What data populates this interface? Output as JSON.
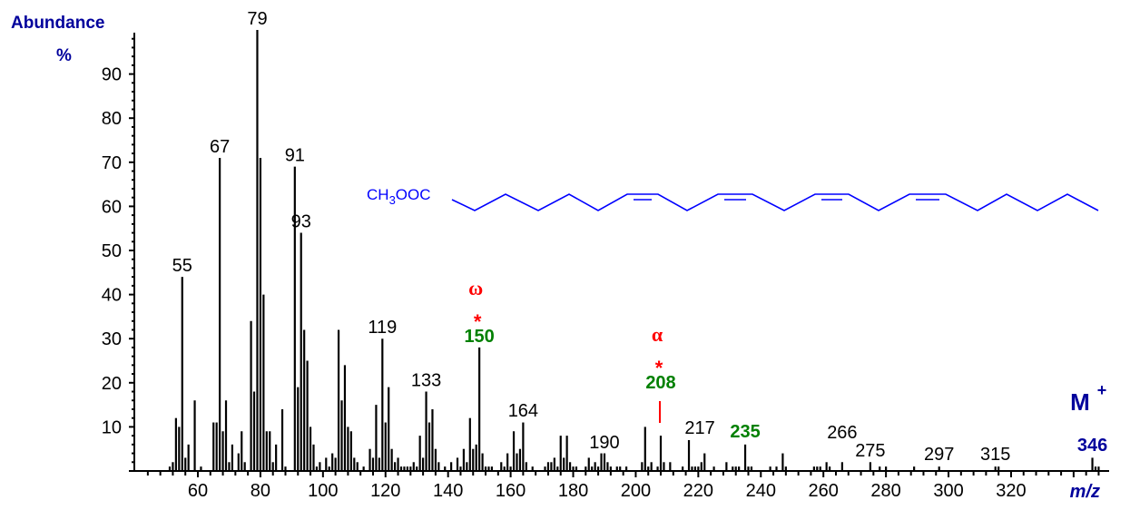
{
  "chart_data": {
    "type": "bar",
    "title": "",
    "xlabel": "m/z",
    "ylabel": "Abundance %",
    "xlim": [
      40,
      350
    ],
    "ylim": [
      0,
      100
    ],
    "xticks": [
      60,
      80,
      100,
      120,
      140,
      160,
      180,
      200,
      220,
      240,
      260,
      280,
      300,
      320
    ],
    "yticks": [
      10,
      20,
      30,
      40,
      50,
      60,
      70,
      80,
      90
    ],
    "grid": false,
    "peaks": [
      [
        51,
        1
      ],
      [
        52,
        2
      ],
      [
        53,
        12
      ],
      [
        54,
        10
      ],
      [
        55,
        44
      ],
      [
        56,
        3
      ],
      [
        57,
        6
      ],
      [
        59,
        16
      ],
      [
        61,
        1
      ],
      [
        65,
        11
      ],
      [
        66,
        11
      ],
      [
        67,
        71
      ],
      [
        68,
        9
      ],
      [
        69,
        16
      ],
      [
        70,
        2
      ],
      [
        71,
        6
      ],
      [
        73,
        4
      ],
      [
        74,
        9
      ],
      [
        75,
        2
      ],
      [
        77,
        34
      ],
      [
        78,
        18
      ],
      [
        79,
        100
      ],
      [
        80,
        71
      ],
      [
        81,
        40
      ],
      [
        82,
        9
      ],
      [
        83,
        9
      ],
      [
        84,
        2
      ],
      [
        85,
        6
      ],
      [
        87,
        14
      ],
      [
        88,
        1
      ],
      [
        91,
        69
      ],
      [
        92,
        19
      ],
      [
        93,
        54
      ],
      [
        94,
        32
      ],
      [
        95,
        25
      ],
      [
        96,
        10
      ],
      [
        97,
        6
      ],
      [
        98,
        1
      ],
      [
        99,
        2
      ],
      [
        101,
        3
      ],
      [
        102,
        1
      ],
      [
        103,
        4
      ],
      [
        104,
        3
      ],
      [
        105,
        32
      ],
      [
        106,
        16
      ],
      [
        107,
        24
      ],
      [
        108,
        10
      ],
      [
        109,
        9
      ],
      [
        110,
        3
      ],
      [
        111,
        2
      ],
      [
        113,
        1
      ],
      [
        115,
        5
      ],
      [
        116,
        3
      ],
      [
        117,
        15
      ],
      [
        118,
        3
      ],
      [
        119,
        30
      ],
      [
        120,
        11
      ],
      [
        121,
        19
      ],
      [
        122,
        5
      ],
      [
        123,
        2
      ],
      [
        124,
        3
      ],
      [
        125,
        1
      ],
      [
        126,
        1
      ],
      [
        127,
        1
      ],
      [
        128,
        1
      ],
      [
        129,
        2
      ],
      [
        130,
        1
      ],
      [
        131,
        8
      ],
      [
        132,
        3
      ],
      [
        133,
        18
      ],
      [
        134,
        11
      ],
      [
        135,
        14
      ],
      [
        136,
        5
      ],
      [
        137,
        2
      ],
      [
        139,
        1
      ],
      [
        141,
        2
      ],
      [
        143,
        3
      ],
      [
        144,
        1
      ],
      [
        145,
        5
      ],
      [
        146,
        2
      ],
      [
        147,
        12
      ],
      [
        148,
        5
      ],
      [
        149,
        6
      ],
      [
        150,
        28
      ],
      [
        151,
        4
      ],
      [
        152,
        1
      ],
      [
        153,
        1
      ],
      [
        154,
        1
      ],
      [
        157,
        2
      ],
      [
        158,
        1
      ],
      [
        159,
        4
      ],
      [
        160,
        1
      ],
      [
        161,
        9
      ],
      [
        162,
        4
      ],
      [
        163,
        5
      ],
      [
        164,
        11
      ],
      [
        165,
        2
      ],
      [
        167,
        1
      ],
      [
        171,
        1
      ],
      [
        172,
        2
      ],
      [
        173,
        2
      ],
      [
        174,
        3
      ],
      [
        175,
        1
      ],
      [
        176,
        8
      ],
      [
        177,
        3
      ],
      [
        178,
        8
      ],
      [
        179,
        2
      ],
      [
        180,
        1
      ],
      [
        181,
        1
      ],
      [
        184,
        1
      ],
      [
        185,
        3
      ],
      [
        186,
        1
      ],
      [
        187,
        2
      ],
      [
        188,
        1
      ],
      [
        189,
        4
      ],
      [
        190,
        4
      ],
      [
        191,
        2
      ],
      [
        192,
        1
      ],
      [
        194,
        1
      ],
      [
        195,
        1
      ],
      [
        197,
        1
      ],
      [
        202,
        2
      ],
      [
        203,
        10
      ],
      [
        204,
        1
      ],
      [
        205,
        2
      ],
      [
        207,
        1
      ],
      [
        208,
        8
      ],
      [
        209,
        2
      ],
      [
        211,
        2
      ],
      [
        215,
        1
      ],
      [
        217,
        7
      ],
      [
        218,
        1
      ],
      [
        219,
        1
      ],
      [
        220,
        1
      ],
      [
        221,
        2
      ],
      [
        222,
        4
      ],
      [
        225,
        1
      ],
      [
        229,
        2
      ],
      [
        231,
        1
      ],
      [
        232,
        1
      ],
      [
        233,
        1
      ],
      [
        235,
        6
      ],
      [
        236,
        1
      ],
      [
        237,
        1
      ],
      [
        243,
        1
      ],
      [
        245,
        1
      ],
      [
        247,
        4
      ],
      [
        248,
        1
      ],
      [
        257,
        1
      ],
      [
        258,
        1
      ],
      [
        259,
        1
      ],
      [
        261,
        2
      ],
      [
        262,
        1
      ],
      [
        266,
        2
      ],
      [
        275,
        2
      ],
      [
        278,
        1
      ],
      [
        280,
        1
      ],
      [
        289,
        1
      ],
      [
        297,
        1
      ],
      [
        315,
        1
      ],
      [
        316,
        1
      ],
      [
        346,
        3
      ],
      [
        347,
        1
      ],
      [
        348,
        1
      ]
    ],
    "annotations": [
      {
        "mz": 55,
        "label": "55",
        "color": "#000000"
      },
      {
        "mz": 67,
        "label": "67",
        "color": "#000000"
      },
      {
        "mz": 79,
        "label": "79",
        "color": "#000000"
      },
      {
        "mz": 91,
        "label": "91",
        "color": "#000000"
      },
      {
        "mz": 93,
        "label": "93",
        "color": "#000000"
      },
      {
        "mz": 119,
        "label": "119",
        "color": "#000000"
      },
      {
        "mz": 133,
        "label": "133",
        "color": "#000000"
      },
      {
        "mz": 150,
        "label": "150",
        "color": "#008000",
        "bold": true,
        "marker": "*",
        "greek": "ω"
      },
      {
        "mz": 164,
        "label": "164",
        "color": "#000000"
      },
      {
        "mz": 190,
        "label": "190",
        "color": "#000000"
      },
      {
        "mz": 208,
        "label": "208",
        "color": "#008000",
        "bold": true,
        "marker": "*",
        "greek": "α"
      },
      {
        "mz": 217,
        "label": "217",
        "color": "#000000"
      },
      {
        "mz": 235,
        "label": "235",
        "color": "#008000",
        "bold": true
      },
      {
        "mz": 266,
        "label": "266",
        "color": "#000000"
      },
      {
        "mz": 275,
        "label": "275",
        "color": "#000000"
      },
      {
        "mz": 297,
        "label": "297",
        "color": "#000000"
      },
      {
        "mz": 315,
        "label": "315",
        "color": "#000000"
      },
      {
        "mz": 346,
        "label": "346",
        "color": "#00009c",
        "bold": true
      }
    ],
    "molecular_ion_label": "M",
    "molecular_ion_sup": "+",
    "structure_label": "CH3OOC",
    "structure_color": "#0000ff"
  },
  "labels": {
    "y_title": "Abundance",
    "y_unit": "%",
    "x_title": "m/z"
  }
}
